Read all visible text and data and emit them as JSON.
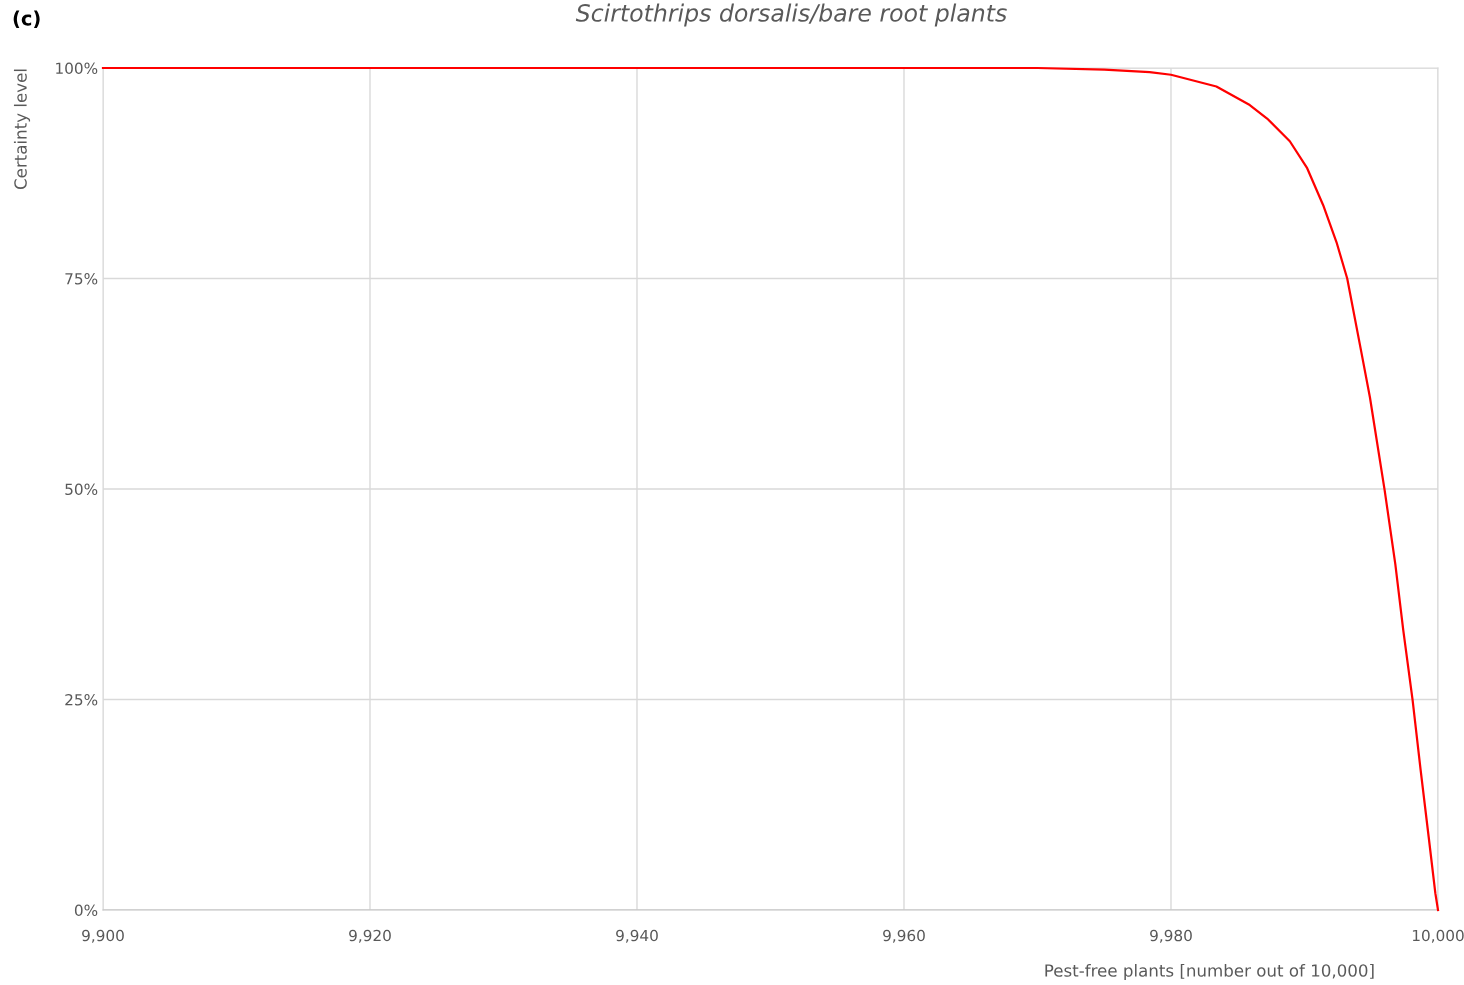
{
  "chart_data": {
    "type": "line",
    "title": "Scirtothrips dorsalis/bare root plants",
    "xlabel": "Pest-free plants [number out of 10,000]",
    "ylabel": "Certainty level",
    "annotations": [
      "(c)"
    ],
    "series": [
      {
        "color": "#ff0000",
        "x": [
          9900,
          9920,
          9940,
          9960,
          9970,
          9975,
          9978.4,
          9980.0,
          9983.4,
          9985.9,
          9987.2,
          9988.9,
          9990.2,
          9991.4,
          9992.4,
          9993.2,
          9994.3,
          9994.9,
          9996.0,
          9996.8,
          9997.4,
          9998.1,
          9998.7,
          9999.3,
          9999.8,
          10000
        ],
        "values": [
          100,
          100,
          100,
          100,
          100,
          99.8,
          99.5,
          99.2,
          97.8,
          95.6,
          94.0,
          91.3,
          88.1,
          83.7,
          79.3,
          75.0,
          65.9,
          60.9,
          49.9,
          41.1,
          33.2,
          24.9,
          16.6,
          8.7,
          2.0,
          0
        ]
      }
    ],
    "xlim": [
      9900,
      10000
    ],
    "ylim": [
      0,
      100
    ],
    "xticks": [
      {
        "value": 9900,
        "label": "9,900"
      },
      {
        "value": 9920,
        "label": "9,920"
      },
      {
        "value": 9940,
        "label": "9,940"
      },
      {
        "value": 9960,
        "label": "9,960"
      },
      {
        "value": 9980,
        "label": "9,980"
      },
      {
        "value": 10000,
        "label": "10,000"
      }
    ],
    "yticks": [
      {
        "value": 0,
        "label": "0%"
      },
      {
        "value": 25,
        "label": "25%"
      },
      {
        "value": 50,
        "label": "50%"
      },
      {
        "value": 75,
        "label": "75%"
      },
      {
        "value": 100,
        "label": "100%"
      }
    ],
    "grid": true,
    "marker": "none",
    "line_style": "solid"
  }
}
